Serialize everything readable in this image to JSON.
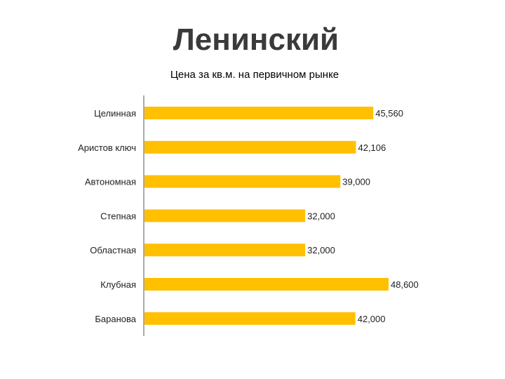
{
  "page": {
    "title": "Ленинский"
  },
  "colors": {
    "bar": "#FFC000",
    "text": "#222222",
    "axis": "#555555"
  },
  "chart_data": {
    "type": "bar",
    "orientation": "horizontal",
    "title": "Цена за кв.м.  на первичном рынке",
    "categories": [
      "Целинная",
      "Аристов ключ",
      "Автономная",
      "Степная",
      "Областная",
      "Клубная",
      "Баранова"
    ],
    "values": [
      45560,
      42106,
      39000,
      32000,
      32000,
      48600,
      42000
    ],
    "value_labels": [
      "45,560",
      "42,106",
      "39,000",
      "32,000",
      "32,000",
      "48,600",
      "42,000"
    ],
    "xlim": [
      0,
      48600
    ],
    "grid": false,
    "legend": "none"
  }
}
